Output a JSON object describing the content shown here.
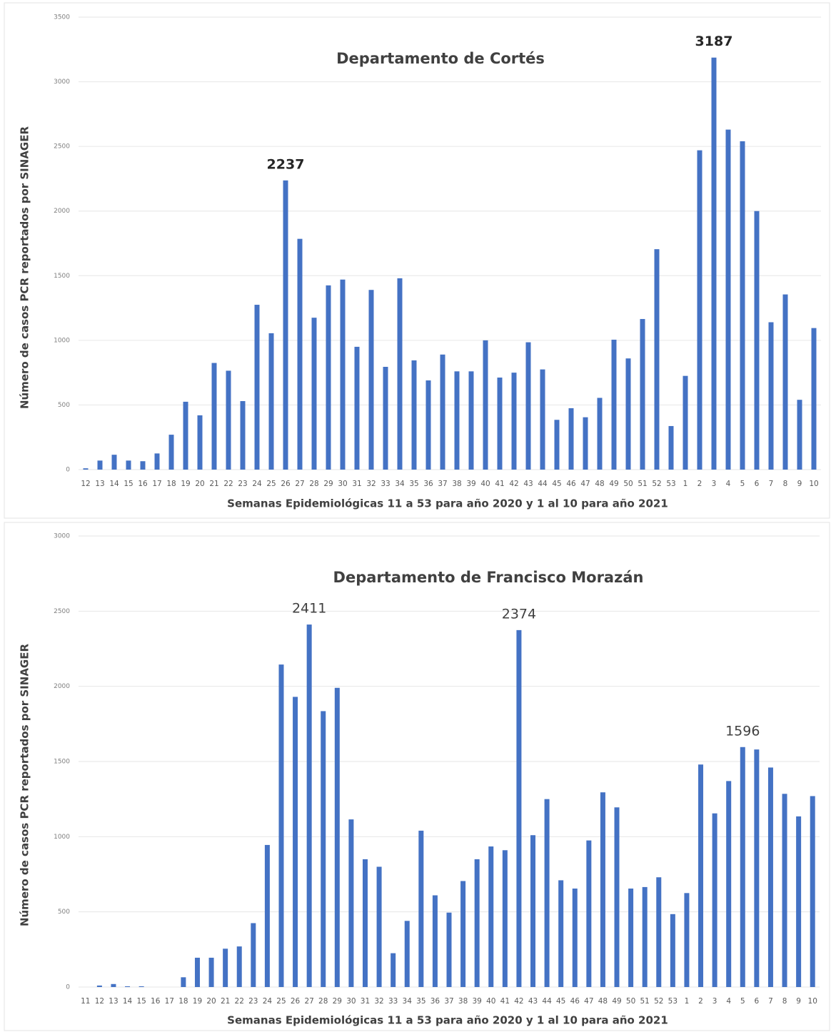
{
  "chart_data": [
    {
      "type": "bar",
      "title": "Departamento de Cortés",
      "x_label": "Semanas Epidemiológicas 11 a 53 para año 2020 y 1 al 10 para año 2021",
      "y_label": "Número de casos PCR reportados por SINAGER",
      "categories": [
        "12",
        "13",
        "14",
        "15",
        "16",
        "17",
        "18",
        "19",
        "20",
        "21",
        "22",
        "23",
        "24",
        "25",
        "26",
        "27",
        "28",
        "29",
        "30",
        "31",
        "32",
        "33",
        "34",
        "35",
        "36",
        "37",
        "38",
        "39",
        "40",
        "41",
        "42",
        "43",
        "44",
        "45",
        "46",
        "47",
        "48",
        "49",
        "50",
        "51",
        "52",
        "53",
        "1",
        "2",
        "3",
        "4",
        "5",
        "6",
        "7",
        "8",
        "9",
        "10"
      ],
      "values": [
        10,
        70,
        115,
        70,
        65,
        125,
        270,
        525,
        420,
        825,
        765,
        530,
        1275,
        1055,
        2237,
        1785,
        1175,
        1425,
        1470,
        950,
        1390,
        795,
        1480,
        845,
        690,
        890,
        760,
        760,
        1000,
        712,
        750,
        985,
        775,
        385,
        475,
        405,
        555,
        1005,
        860,
        1165,
        1705,
        337,
        725,
        2470,
        3187,
        2630,
        2540,
        2000,
        1140,
        1355,
        540,
        1095
      ],
      "value_labels": [
        null,
        null,
        null,
        null,
        null,
        null,
        null,
        null,
        null,
        null,
        null,
        null,
        null,
        null,
        "2237",
        null,
        null,
        null,
        null,
        null,
        null,
        null,
        null,
        null,
        null,
        null,
        null,
        null,
        null,
        null,
        null,
        null,
        null,
        null,
        null,
        null,
        null,
        null,
        null,
        null,
        null,
        null,
        null,
        null,
        "3187",
        null,
        null,
        null,
        null,
        null,
        null,
        null
      ],
      "color": "#4472c4",
      "ylim": [
        0,
        3500
      ],
      "yticks": [
        0,
        500,
        1000,
        1500,
        2000,
        2500,
        3000,
        3500
      ],
      "grid": true
    },
    {
      "type": "bar",
      "title": "Departamento de Francisco Morazán",
      "x_label": "Semanas Epidemiológicas 11 a 53 para año 2020 y 1 al 10 para año 2021",
      "y_label": "Número de casos PCR reportados por SINAGER",
      "categories": [
        "11",
        "12",
        "13",
        "14",
        "15",
        "16",
        "17",
        "18",
        "19",
        "20",
        "21",
        "22",
        "23",
        "24",
        "25",
        "26",
        "27",
        "28",
        "29",
        "30",
        "31",
        "32",
        "33",
        "34",
        "35",
        "36",
        "37",
        "38",
        "39",
        "40",
        "41",
        "42",
        "43",
        "44",
        "45",
        "46",
        "47",
        "48",
        "49",
        "50",
        "51",
        "52",
        "53",
        "1",
        "2",
        "3",
        "4",
        "5",
        "6",
        "7",
        "8",
        "9",
        "10"
      ],
      "values": [
        0,
        10,
        20,
        5,
        5,
        0,
        0,
        65,
        195,
        195,
        255,
        270,
        425,
        945,
        2145,
        1930,
        2411,
        1835,
        1990,
        1115,
        850,
        800,
        225,
        440,
        1040,
        610,
        495,
        705,
        850,
        935,
        910,
        2374,
        1010,
        1250,
        710,
        655,
        975,
        1295,
        1195,
        655,
        665,
        730,
        485,
        625,
        1480,
        1155,
        1370,
        1596,
        1580,
        1460,
        1285,
        1135,
        1270
      ],
      "value_labels": [
        null,
        null,
        null,
        null,
        null,
        null,
        null,
        null,
        null,
        null,
        null,
        null,
        null,
        null,
        null,
        null,
        "2411",
        null,
        null,
        null,
        null,
        null,
        null,
        null,
        null,
        null,
        null,
        null,
        null,
        null,
        null,
        "2374",
        null,
        null,
        null,
        null,
        null,
        null,
        null,
        null,
        null,
        null,
        null,
        null,
        null,
        null,
        null,
        "1596",
        null,
        null,
        null,
        null,
        null
      ],
      "color": "#4472c4",
      "ylim": [
        0,
        3000
      ],
      "yticks": [
        0,
        500,
        1000,
        1500,
        2000,
        2500,
        3000
      ],
      "grid": true
    }
  ]
}
